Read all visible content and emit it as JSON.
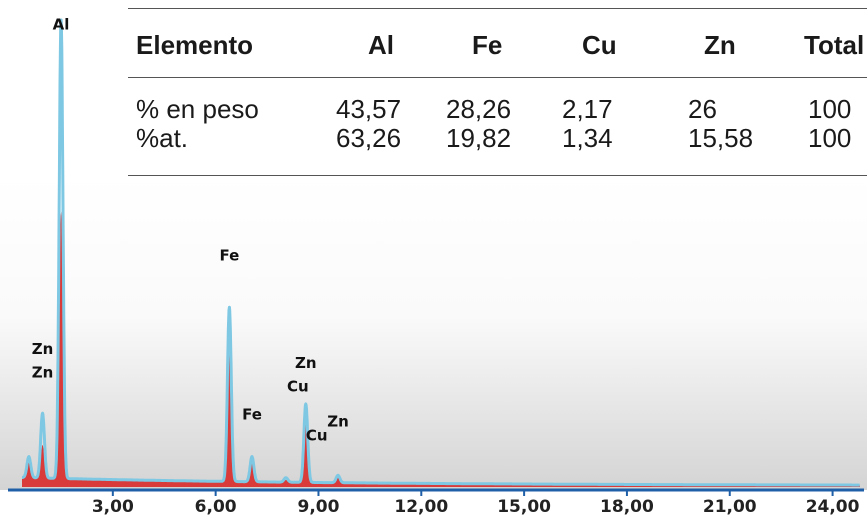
{
  "table": {
    "headers": [
      "Elemento",
      "Al",
      "Fe",
      "Cu",
      "Zn",
      "Total"
    ],
    "rows": [
      {
        "label": "% en peso",
        "values": [
          "43,57",
          "28,26",
          "2,17",
          "26",
          "100"
        ]
      },
      {
        "label": "%at.",
        "values": [
          "63,26",
          "19,82",
          "1,34",
          "15,58",
          "100"
        ]
      }
    ]
  },
  "chart_data": {
    "type": "line",
    "title": "",
    "xlabel": "",
    "ylabel": "",
    "xlim": [
      0,
      24.8
    ],
    "ylim": [
      0,
      100
    ],
    "x_tick_labels": [
      "3,00",
      "6,00",
      "9,00",
      "12,00",
      "15,00",
      "18,00",
      "21,00",
      "24,00"
    ],
    "x_ticks": [
      3,
      6,
      9,
      12,
      15,
      18,
      21,
      24
    ],
    "colors": {
      "outline": "#7ec8e3",
      "fill": "#d93a3a",
      "axis": "#1f5fa8",
      "background_top": "#ffffff",
      "background_bottom": "#d8d8d8"
    },
    "peaks": [
      {
        "x": 0.55,
        "height": 6.5,
        "fill_height": 6.0
      },
      {
        "x": 0.95,
        "height": 15.8,
        "fill_height": 9.0
      },
      {
        "x": 1.49,
        "height": 100,
        "fill_height": 59.0
      },
      {
        "x": 6.4,
        "height": 38.5,
        "fill_height": 33.0
      },
      {
        "x": 7.06,
        "height": 6.5,
        "fill_height": 5.5
      },
      {
        "x": 8.05,
        "height": 2.0,
        "fill_height": 1.5
      },
      {
        "x": 8.63,
        "height": 17.8,
        "fill_height": 13.5
      },
      {
        "x": 9.57,
        "height": 2.5,
        "fill_height": 2.0
      }
    ],
    "peak_labels": [
      {
        "text": "Al",
        "x": 1.49,
        "y": 98
      },
      {
        "text": "Zn",
        "x": 0.95,
        "y": 28.5
      },
      {
        "text": "Zn",
        "x": 0.95,
        "y": 23.5
      },
      {
        "text": "Fe",
        "x": 6.4,
        "y": 48.5
      },
      {
        "text": "Fe",
        "x": 7.06,
        "y": 14.5
      },
      {
        "text": "Cu",
        "x": 8.4,
        "y": 20.5
      },
      {
        "text": "Zn",
        "x": 8.63,
        "y": 25.5
      },
      {
        "text": "Zn",
        "x": 9.57,
        "y": 13.0
      },
      {
        "text": "Cu",
        "x": 8.95,
        "y": 10.0
      }
    ]
  }
}
